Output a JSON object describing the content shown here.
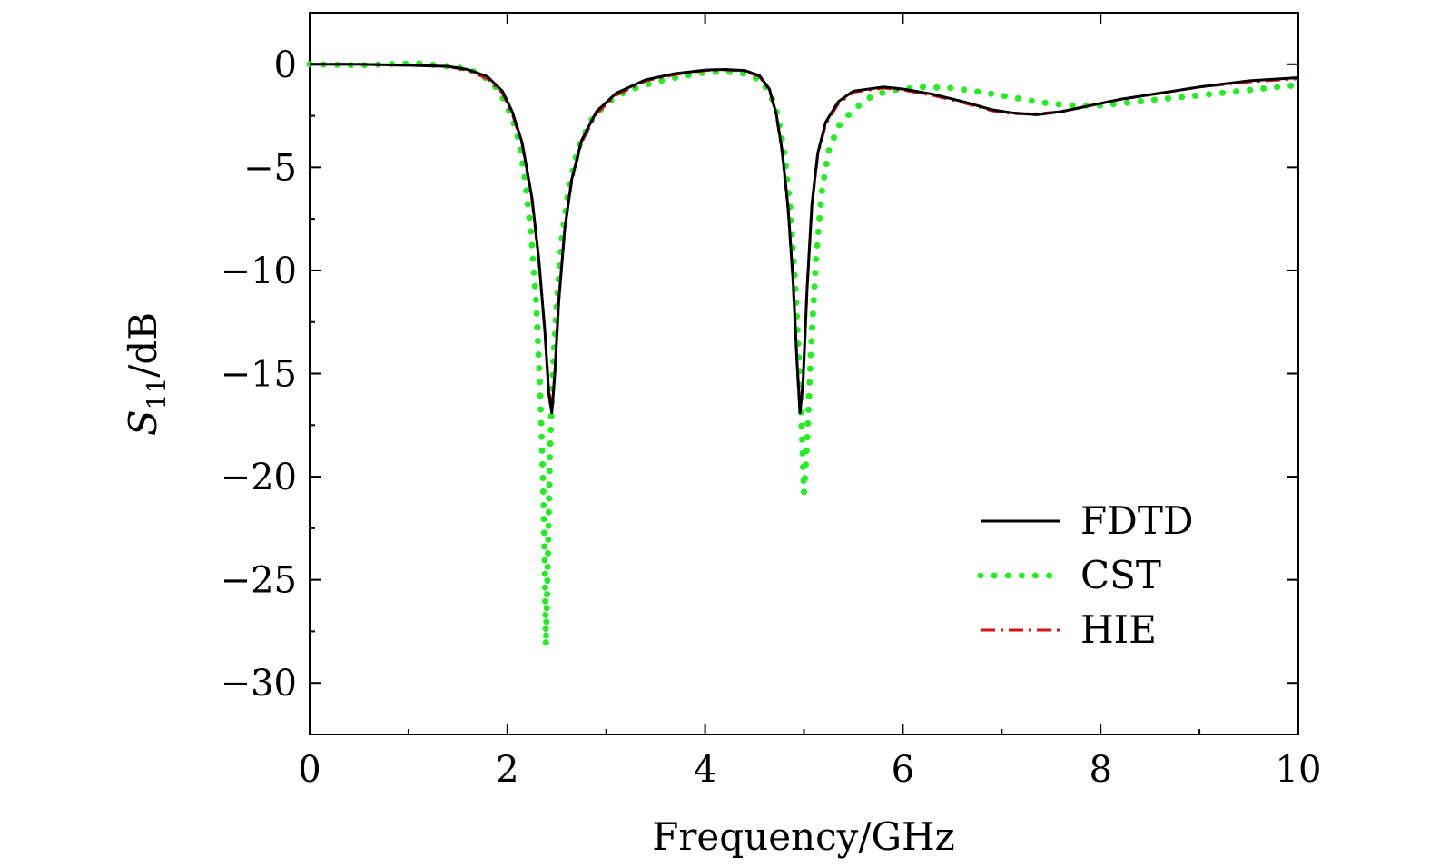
{
  "chart_data": {
    "type": "line",
    "title": "",
    "xlabel": "Frequency/GHz",
    "ylabel": {
      "base": "S",
      "sub": "11",
      "rest": "/dB"
    },
    "xlim": [
      0,
      10
    ],
    "ylim": [
      -32.5,
      2.5
    ],
    "xticks": [
      0,
      2,
      4,
      6,
      8,
      10
    ],
    "xtick_labels": [
      "0",
      "2",
      "4",
      "6",
      "8",
      "10"
    ],
    "yticks": [
      0,
      -5,
      -10,
      -15,
      -20,
      -25,
      -30
    ],
    "ytick_labels": [
      "0",
      "−5",
      "−10",
      "−15",
      "−20",
      "−25",
      "−30"
    ],
    "grid": false,
    "legend_position": "bottom-right",
    "series": [
      {
        "name": "FDTD",
        "color": "#000000",
        "style": "solid",
        "points": [
          [
            0,
            0
          ],
          [
            0.5,
            0
          ],
          [
            1.0,
            -0.05
          ],
          [
            1.4,
            -0.1
          ],
          [
            1.6,
            -0.25
          ],
          [
            1.8,
            -0.6
          ],
          [
            1.95,
            -1.3
          ],
          [
            2.05,
            -2.3
          ],
          [
            2.15,
            -3.8
          ],
          [
            2.25,
            -6.5
          ],
          [
            2.32,
            -9.5
          ],
          [
            2.38,
            -13.0
          ],
          [
            2.42,
            -16.0
          ],
          [
            2.45,
            -16.9
          ],
          [
            2.48,
            -15.0
          ],
          [
            2.52,
            -11.5
          ],
          [
            2.58,
            -8.0
          ],
          [
            2.65,
            -5.6
          ],
          [
            2.75,
            -3.7
          ],
          [
            2.9,
            -2.3
          ],
          [
            3.1,
            -1.4
          ],
          [
            3.4,
            -0.75
          ],
          [
            3.7,
            -0.45
          ],
          [
            4.0,
            -0.28
          ],
          [
            4.2,
            -0.25
          ],
          [
            4.4,
            -0.3
          ],
          [
            4.55,
            -0.55
          ],
          [
            4.65,
            -1.2
          ],
          [
            4.72,
            -2.4
          ],
          [
            4.78,
            -4.2
          ],
          [
            4.84,
            -7.0
          ],
          [
            4.89,
            -10.5
          ],
          [
            4.93,
            -14.5
          ],
          [
            4.96,
            -16.9
          ],
          [
            4.99,
            -15.5
          ],
          [
            5.03,
            -11.0
          ],
          [
            5.08,
            -6.8
          ],
          [
            5.14,
            -4.3
          ],
          [
            5.22,
            -2.8
          ],
          [
            5.35,
            -1.8
          ],
          [
            5.5,
            -1.3
          ],
          [
            5.8,
            -1.1
          ],
          [
            6.0,
            -1.2
          ],
          [
            6.3,
            -1.45
          ],
          [
            6.6,
            -1.8
          ],
          [
            6.9,
            -2.2
          ],
          [
            7.1,
            -2.35
          ],
          [
            7.35,
            -2.45
          ],
          [
            7.6,
            -2.3
          ],
          [
            7.9,
            -2.0
          ],
          [
            8.2,
            -1.7
          ],
          [
            8.6,
            -1.4
          ],
          [
            9.0,
            -1.1
          ],
          [
            9.5,
            -0.8
          ],
          [
            10,
            -0.65
          ]
        ]
      },
      {
        "name": "CST",
        "color": "#22ee22",
        "style": "dotted",
        "points": [
          [
            0,
            0
          ],
          [
            0.5,
            -0.05
          ],
          [
            0.8,
            0
          ],
          [
            1.1,
            0.05
          ],
          [
            1.3,
            -0.05
          ],
          [
            1.5,
            -0.15
          ],
          [
            1.7,
            -0.4
          ],
          [
            1.85,
            -0.9
          ],
          [
            1.95,
            -1.6
          ],
          [
            2.05,
            -2.6
          ],
          [
            2.12,
            -3.8
          ],
          [
            2.18,
            -5.6
          ],
          [
            2.24,
            -8.2
          ],
          [
            2.29,
            -11.5
          ],
          [
            2.33,
            -15.5
          ],
          [
            2.36,
            -20.0
          ],
          [
            2.38,
            -24.5
          ],
          [
            2.39,
            -28.2
          ],
          [
            2.41,
            -24.0
          ],
          [
            2.43,
            -19.0
          ],
          [
            2.46,
            -15.0
          ],
          [
            2.5,
            -11.5
          ],
          [
            2.55,
            -8.5
          ],
          [
            2.62,
            -6.0
          ],
          [
            2.72,
            -4.0
          ],
          [
            2.85,
            -2.7
          ],
          [
            3.0,
            -1.9
          ],
          [
            3.2,
            -1.3
          ],
          [
            3.5,
            -0.85
          ],
          [
            3.8,
            -0.55
          ],
          [
            4.0,
            -0.4
          ],
          [
            4.2,
            -0.35
          ],
          [
            4.4,
            -0.45
          ],
          [
            4.55,
            -0.75
          ],
          [
            4.65,
            -1.3
          ],
          [
            4.73,
            -2.4
          ],
          [
            4.8,
            -4.2
          ],
          [
            4.86,
            -7.0
          ],
          [
            4.91,
            -10.5
          ],
          [
            4.95,
            -14.5
          ],
          [
            4.98,
            -18.0
          ],
          [
            5.0,
            -20.8
          ],
          [
            5.03,
            -18.5
          ],
          [
            5.07,
            -14.0
          ],
          [
            5.12,
            -9.5
          ],
          [
            5.18,
            -6.2
          ],
          [
            5.25,
            -4.2
          ],
          [
            5.35,
            -3.0
          ],
          [
            5.5,
            -2.2
          ],
          [
            5.7,
            -1.5
          ],
          [
            5.9,
            -1.25
          ],
          [
            6.2,
            -1.1
          ],
          [
            6.5,
            -1.15
          ],
          [
            6.8,
            -1.35
          ],
          [
            7.1,
            -1.6
          ],
          [
            7.4,
            -1.85
          ],
          [
            7.7,
            -2.0
          ],
          [
            8.0,
            -2.0
          ],
          [
            8.3,
            -1.85
          ],
          [
            8.6,
            -1.7
          ],
          [
            9.0,
            -1.5
          ],
          [
            9.5,
            -1.25
          ],
          [
            10,
            -1.0
          ]
        ]
      },
      {
        "name": "HIE",
        "color": "#dd1111",
        "style": "dashdot",
        "points": [
          [
            0,
            0
          ],
          [
            0.5,
            0
          ],
          [
            1.0,
            -0.05
          ],
          [
            1.4,
            -0.1
          ],
          [
            1.6,
            -0.3
          ],
          [
            1.8,
            -0.7
          ],
          [
            1.95,
            -1.4
          ],
          [
            2.05,
            -2.4
          ],
          [
            2.15,
            -3.9
          ],
          [
            2.25,
            -6.6
          ],
          [
            2.32,
            -9.6
          ],
          [
            2.38,
            -13.0
          ],
          [
            2.42,
            -15.8
          ],
          [
            2.45,
            -16.6
          ],
          [
            2.48,
            -15.0
          ],
          [
            2.52,
            -11.5
          ],
          [
            2.58,
            -8.0
          ],
          [
            2.65,
            -5.7
          ],
          [
            2.75,
            -3.8
          ],
          [
            2.9,
            -2.4
          ],
          [
            3.1,
            -1.5
          ],
          [
            3.4,
            -0.8
          ],
          [
            3.7,
            -0.5
          ],
          [
            4.0,
            -0.3
          ],
          [
            4.2,
            -0.27
          ],
          [
            4.4,
            -0.33
          ],
          [
            4.55,
            -0.6
          ],
          [
            4.65,
            -1.25
          ],
          [
            4.72,
            -2.45
          ],
          [
            4.78,
            -4.3
          ],
          [
            4.84,
            -7.1
          ],
          [
            4.89,
            -10.6
          ],
          [
            4.93,
            -14.5
          ],
          [
            4.96,
            -16.8
          ],
          [
            4.99,
            -15.4
          ],
          [
            5.03,
            -11.0
          ],
          [
            5.08,
            -6.9
          ],
          [
            5.14,
            -4.4
          ],
          [
            5.22,
            -2.9
          ],
          [
            5.35,
            -1.9
          ],
          [
            5.5,
            -1.35
          ],
          [
            5.8,
            -1.15
          ],
          [
            6.0,
            -1.25
          ],
          [
            6.3,
            -1.5
          ],
          [
            6.6,
            -1.85
          ],
          [
            6.9,
            -2.25
          ],
          [
            7.1,
            -2.4
          ],
          [
            7.35,
            -2.4
          ],
          [
            7.6,
            -2.3
          ],
          [
            7.9,
            -2.0
          ],
          [
            8.2,
            -1.7
          ],
          [
            8.6,
            -1.4
          ],
          [
            9.0,
            -1.1
          ],
          [
            9.5,
            -0.85
          ],
          [
            10,
            -0.7
          ]
        ]
      }
    ]
  }
}
